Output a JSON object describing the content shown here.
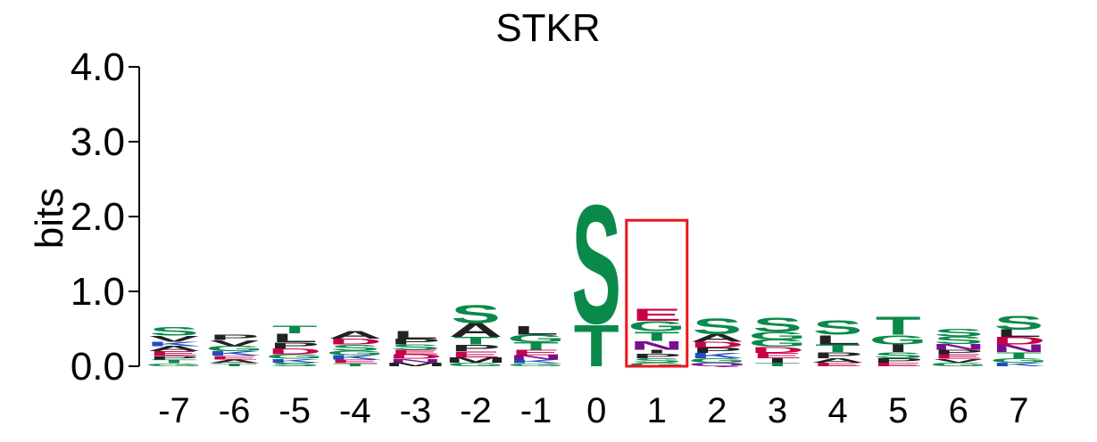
{
  "colors": {
    "S": "#0a8a4a",
    "T": "#0a8a4a",
    "G": "#0a8a4a",
    "D": "#c8004a",
    "E": "#c8004a",
    "N": "#7a0e8f",
    "Q": "#7a0e8f",
    "K": "#1f4fbf",
    "R": "#1f4fbf",
    "H": "#1f4fbf",
    "A": "#222222",
    "L": "#222222",
    "V": "#222222",
    "I": "#222222",
    "P": "#222222",
    "M": "#222222",
    "F": "#222222",
    "highlight": "#e8171b"
  },
  "chart_data": {
    "type": "sequence-logo",
    "title": "STKR",
    "ylabel": "bits",
    "ylim": [
      0,
      4
    ],
    "yticks": [
      "0.0",
      "1.0",
      "2.0",
      "3.0",
      "4.0"
    ],
    "positions": [
      "-7",
      "-6",
      "-5",
      "-4",
      "-3",
      "-2",
      "-1",
      "0",
      "1",
      "2",
      "3",
      "4",
      "5",
      "6",
      "7"
    ],
    "highlight_position": "1",
    "columns": [
      {
        "pos": "-7",
        "letters": [
          [
            "G",
            0.04
          ],
          [
            "T",
            0.05
          ],
          [
            "P",
            0.05
          ],
          [
            "E",
            0.06
          ],
          [
            "A",
            0.07
          ],
          [
            "K",
            0.06
          ],
          [
            "V",
            0.08
          ],
          [
            "S",
            0.12
          ]
        ]
      },
      {
        "pos": "-6",
        "letters": [
          [
            "T",
            0.04
          ],
          [
            "A",
            0.05
          ],
          [
            "E",
            0.05
          ],
          [
            "K",
            0.06
          ],
          [
            "G",
            0.07
          ],
          [
            "V",
            0.08
          ],
          [
            "P",
            0.07
          ]
        ]
      },
      {
        "pos": "-5",
        "letters": [
          [
            "S",
            0.05
          ],
          [
            "K",
            0.05
          ],
          [
            "G",
            0.06
          ],
          [
            "D",
            0.08
          ],
          [
            "P",
            0.08
          ],
          [
            "L",
            0.12
          ],
          [
            "T",
            0.1
          ]
        ]
      },
      {
        "pos": "-4",
        "letters": [
          [
            "T",
            0.04
          ],
          [
            "E",
            0.05
          ],
          [
            "K",
            0.06
          ],
          [
            "G",
            0.06
          ],
          [
            "S",
            0.08
          ],
          [
            "D",
            0.08
          ],
          [
            "A",
            0.1
          ]
        ]
      },
      {
        "pos": "-3",
        "letters": [
          [
            "M",
            0.05
          ],
          [
            "N",
            0.05
          ],
          [
            "D",
            0.06
          ],
          [
            "E",
            0.06
          ],
          [
            "S",
            0.07
          ],
          [
            "P",
            0.08
          ],
          [
            "L",
            0.1
          ]
        ]
      },
      {
        "pos": "-2",
        "letters": [
          [
            "G",
            0.05
          ],
          [
            "M",
            0.07
          ],
          [
            "E",
            0.08
          ],
          [
            "P",
            0.09
          ],
          [
            "T",
            0.1
          ],
          [
            "A",
            0.19
          ],
          [
            "S",
            0.25
          ]
        ]
      },
      {
        "pos": "-1",
        "letters": [
          [
            "G",
            0.04
          ],
          [
            "K",
            0.05
          ],
          [
            "N",
            0.06
          ],
          [
            "E",
            0.07
          ],
          [
            "T",
            0.1
          ],
          [
            "G",
            0.1
          ],
          [
            "L",
            0.12
          ]
        ]
      },
      {
        "pos": "0",
        "letters": [
          [
            "T",
            0.58
          ],
          [
            "S",
            1.65
          ]
        ]
      },
      {
        "pos": "1",
        "letters": [
          [
            "G",
            0.05
          ],
          [
            "S",
            0.06
          ],
          [
            "P",
            0.06
          ],
          [
            "I",
            0.05
          ],
          [
            "N",
            0.12
          ],
          [
            "T",
            0.13
          ],
          [
            "G",
            0.14
          ],
          [
            "E",
            0.17
          ]
        ]
      },
      {
        "pos": "2",
        "letters": [
          [
            "Q",
            0.05
          ],
          [
            "G",
            0.06
          ],
          [
            "K",
            0.07
          ],
          [
            "P",
            0.07
          ],
          [
            "D",
            0.08
          ],
          [
            "A",
            0.1
          ],
          [
            "S",
            0.22
          ]
        ]
      },
      {
        "pos": "3",
        "letters": [
          [
            "T",
            0.05
          ],
          [
            "I",
            0.06
          ],
          [
            "E",
            0.07
          ],
          [
            "D",
            0.08
          ],
          [
            "G",
            0.1
          ],
          [
            "G",
            0.1
          ],
          [
            "S",
            0.2
          ]
        ]
      },
      {
        "pos": "4",
        "letters": [
          [
            "E",
            0.05
          ],
          [
            "A",
            0.06
          ],
          [
            "P",
            0.08
          ],
          [
            "T",
            0.1
          ],
          [
            "L",
            0.13
          ],
          [
            "S",
            0.2
          ]
        ]
      },
      {
        "pos": "5",
        "letters": [
          [
            "E",
            0.05
          ],
          [
            "P",
            0.06
          ],
          [
            "S",
            0.08
          ],
          [
            "I",
            0.1
          ],
          [
            "G",
            0.13
          ],
          [
            "T",
            0.25
          ]
        ]
      },
      {
        "pos": "6",
        "letters": [
          [
            "G",
            0.05
          ],
          [
            "V",
            0.05
          ],
          [
            "E",
            0.06
          ],
          [
            "P",
            0.06
          ],
          [
            "N",
            0.08
          ],
          [
            "S",
            0.1
          ],
          [
            "S",
            0.1
          ]
        ]
      },
      {
        "pos": "7",
        "letters": [
          [
            "K",
            0.05
          ],
          [
            "G",
            0.06
          ],
          [
            "T",
            0.08
          ],
          [
            "N",
            0.1
          ],
          [
            "D",
            0.1
          ],
          [
            "L",
            0.1
          ],
          [
            "S",
            0.19
          ]
        ]
      }
    ]
  }
}
